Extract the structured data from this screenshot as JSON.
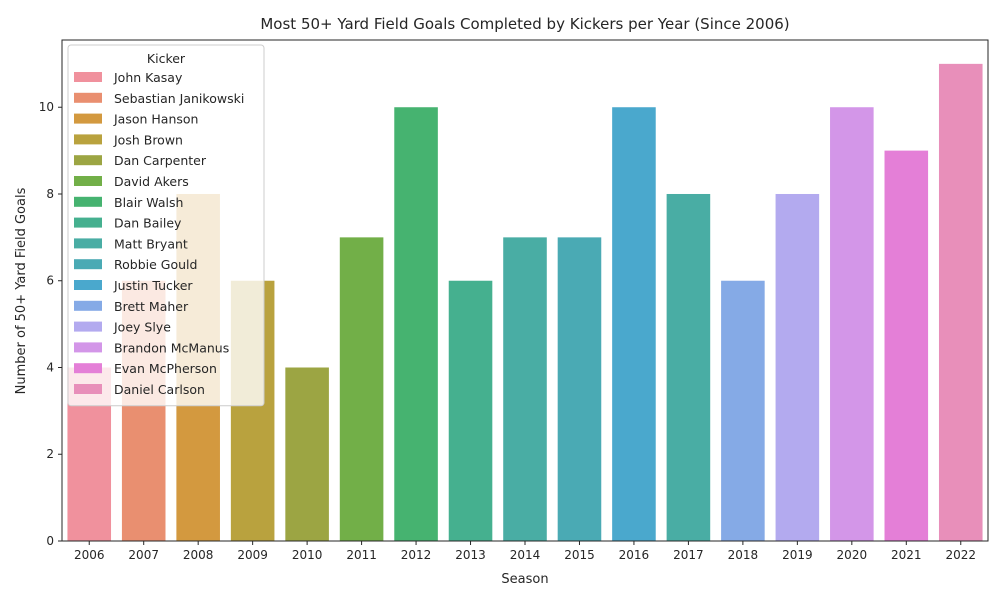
{
  "chart_data": {
    "type": "bar",
    "title": "Most 50+ Yard Field Goals Completed by Kickers per Year (Since 2006)",
    "xlabel": "Season",
    "ylabel": "Number of 50+ Yard Field Goals",
    "ylim": [
      0,
      11.55
    ],
    "yticks": [
      "0",
      "2",
      "4",
      "6",
      "8",
      "10"
    ],
    "grid": false,
    "legend_title": "Kicker",
    "legend_position": "top-left",
    "categories": [
      "2006",
      "2007",
      "2008",
      "2009",
      "2010",
      "2011",
      "2012",
      "2013",
      "2014",
      "2015",
      "2016",
      "2017",
      "2018",
      "2019",
      "2020",
      "2021",
      "2022"
    ],
    "kickers": [
      "John Kasay",
      "Sebastian Janikowski",
      "Jason Hanson",
      "Josh Brown",
      "Dan Carpenter",
      "David Akers",
      "Blair Walsh",
      "Dan Bailey",
      "Matt Bryant",
      "Robbie Gould",
      "Justin Tucker",
      "Matt Bryant",
      "Brett Maher",
      "Joey Slye",
      "Brandon McManus",
      "Evan McPherson",
      "Daniel Carlson"
    ],
    "values": [
      4,
      6,
      8,
      6,
      4,
      7,
      10,
      6,
      7,
      7,
      10,
      8,
      6,
      8,
      10,
      9,
      11
    ],
    "legend": [
      {
        "name": "John Kasay",
        "color": "#f0919d"
      },
      {
        "name": "Sebastian Janikowski",
        "color": "#e98f70"
      },
      {
        "name": "Jason Hanson",
        "color": "#d3993f"
      },
      {
        "name": "Josh Brown",
        "color": "#b9a23e"
      },
      {
        "name": "Dan Carpenter",
        "color": "#9ca543"
      },
      {
        "name": "David Akers",
        "color": "#72af48"
      },
      {
        "name": "Blair Walsh",
        "color": "#46b370"
      },
      {
        "name": "Dan Bailey",
        "color": "#45b08f"
      },
      {
        "name": "Matt Bryant",
        "color": "#49ada4"
      },
      {
        "name": "Robbie Gould",
        "color": "#4aaab4"
      },
      {
        "name": "Justin Tucker",
        "color": "#4aa8cd"
      },
      {
        "name": "Brett Maher",
        "color": "#85aae6"
      },
      {
        "name": "Joey Slye",
        "color": "#b3aaef"
      },
      {
        "name": "Brandon McManus",
        "color": "#d396e8"
      },
      {
        "name": "Evan McPherson",
        "color": "#e47fd7"
      },
      {
        "name": "Daniel Carlson",
        "color": "#e88fba"
      }
    ]
  }
}
